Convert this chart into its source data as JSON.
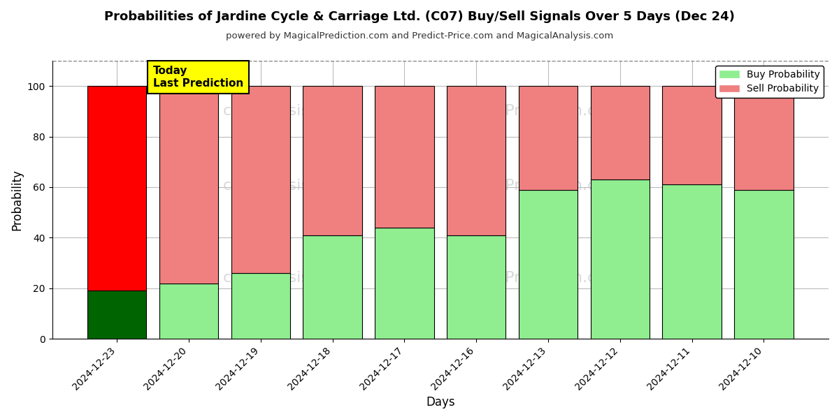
{
  "title": "Probabilities of Jardine Cycle & Carriage Ltd. (C07) Buy/Sell Signals Over 5 Days (Dec 24)",
  "subtitle": "powered by MagicalPrediction.com and Predict-Price.com and MagicalAnalysis.com",
  "xlabel": "Days",
  "ylabel": "Probability",
  "categories": [
    "2024-12-23",
    "2024-12-20",
    "2024-12-19",
    "2024-12-18",
    "2024-12-17",
    "2024-12-16",
    "2024-12-13",
    "2024-12-12",
    "2024-12-11",
    "2024-12-10"
  ],
  "buy_values": [
    19,
    22,
    26,
    41,
    44,
    41,
    59,
    63,
    61,
    59
  ],
  "sell_values": [
    81,
    78,
    74,
    59,
    56,
    59,
    41,
    37,
    39,
    41
  ],
  "today_buy_color": "#006400",
  "today_sell_color": "#ff0000",
  "buy_color": "#90ee90",
  "sell_color": "#f08080",
  "today_label_bg": "#ffff00",
  "today_label_text": "Today\nLast Prediction",
  "legend_buy": "Buy Probability",
  "legend_sell": "Sell Probability",
  "ylim": [
    0,
    110
  ],
  "yticks": [
    0,
    20,
    40,
    60,
    80,
    100
  ],
  "dashed_line_y": 110,
  "bg_color": "#ffffff",
  "grid_color": "#bbbbbb"
}
